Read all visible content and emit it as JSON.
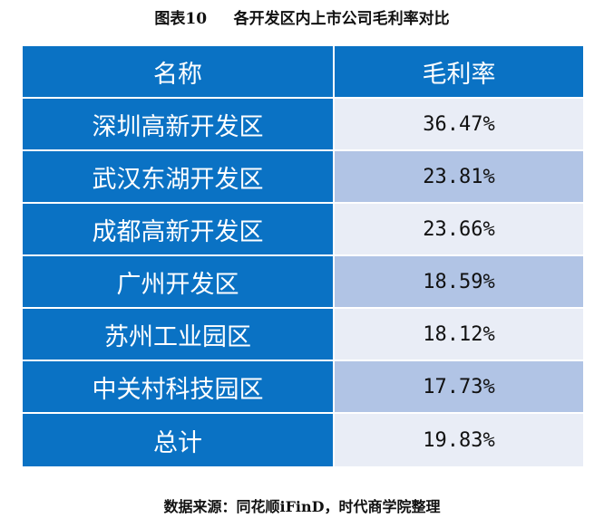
{
  "caption": "图表10     各开发区内上市公司毛利率对比",
  "table": {
    "headers": [
      "名称",
      "毛利率"
    ],
    "rows": [
      [
        "深圳高新开发区",
        "36.47%"
      ],
      [
        "武汉东湖开发区",
        "23.81%"
      ],
      [
        "成都高新开发区",
        "23.66%"
      ],
      [
        "广州开发区",
        "18.59%"
      ],
      [
        "苏州工业园区",
        "18.12%"
      ],
      [
        "中关村科技园区",
        "17.73%"
      ],
      [
        "总计",
        "19.83%"
      ]
    ]
  },
  "source": "数据来源：同花顺iFinD，时代商学院整理",
  "colors": {
    "header_blue": "#0A72C4",
    "row_light": "#E9EDF6",
    "row_dark": "#B1C4E5"
  }
}
